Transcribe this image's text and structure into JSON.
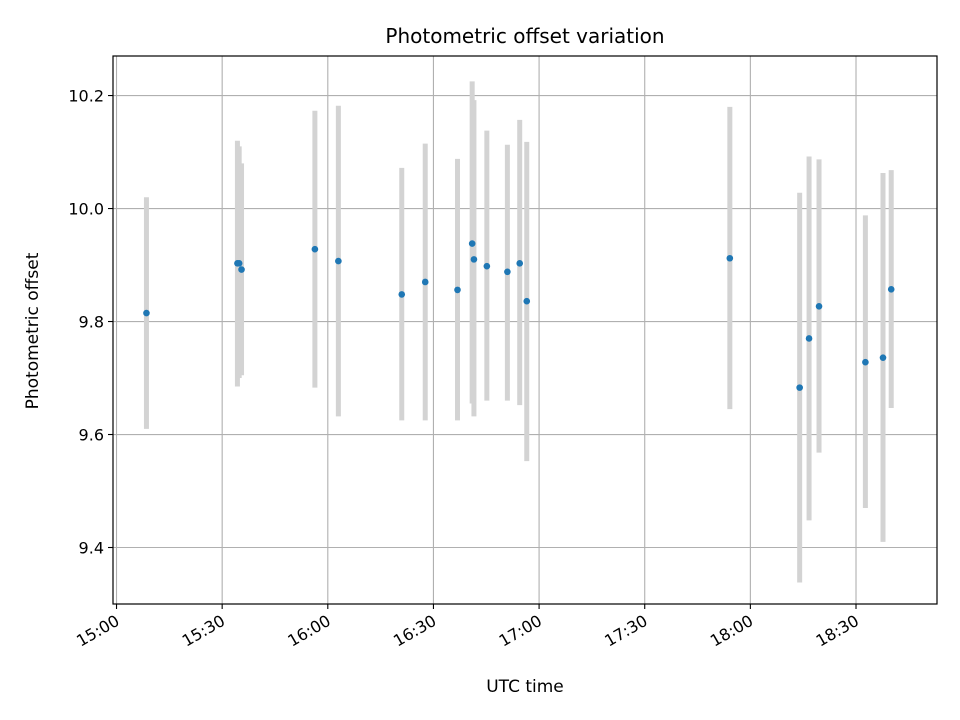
{
  "chart_data": {
    "type": "scatter",
    "title": "Photometric offset variation",
    "xlabel": "UTC time",
    "ylabel": "Photometric offset",
    "x_unit": "time of day (UTC)",
    "xlim": [
      "14:59",
      "18:53"
    ],
    "ylim": [
      9.3,
      10.27
    ],
    "grid": true,
    "legend": "none",
    "x_ticks": [
      "15:00",
      "15:30",
      "16:00",
      "16:30",
      "17:00",
      "17:30",
      "18:00",
      "18:30"
    ],
    "y_ticks": [
      9.4,
      9.6,
      9.8,
      10.0,
      10.2
    ],
    "y_tick_labels": [
      "9.4",
      "9.6",
      "9.8",
      "10.0",
      "10.2"
    ],
    "colors": {
      "point": "#1f77b4",
      "errorbar": "#d3d3d3",
      "grid": "#b0b0b0"
    },
    "series": [
      {
        "marker": "point",
        "errorbars": "vertical",
        "points": [
          {
            "x": "15:08:30",
            "y": 9.815,
            "ylow": 9.61,
            "yhigh": 10.02
          },
          {
            "x": "15:34:20",
            "y": 9.903,
            "ylow": 9.685,
            "yhigh": 10.12
          },
          {
            "x": "15:34:50",
            "y": 9.903,
            "ylow": 9.7,
            "yhigh": 10.11
          },
          {
            "x": "15:35:30",
            "y": 9.892,
            "ylow": 9.705,
            "yhigh": 10.08
          },
          {
            "x": "15:56:20",
            "y": 9.928,
            "ylow": 9.683,
            "yhigh": 10.173
          },
          {
            "x": "16:03:00",
            "y": 9.907,
            "ylow": 9.632,
            "yhigh": 10.182
          },
          {
            "x": "16:21:00",
            "y": 9.848,
            "ylow": 9.625,
            "yhigh": 10.072
          },
          {
            "x": "16:27:40",
            "y": 9.87,
            "ylow": 9.625,
            "yhigh": 10.115
          },
          {
            "x": "16:36:50",
            "y": 9.856,
            "ylow": 9.625,
            "yhigh": 10.088
          },
          {
            "x": "16:41:00",
            "y": 9.938,
            "ylow": 9.655,
            "yhigh": 10.225
          },
          {
            "x": "16:41:30",
            "y": 9.91,
            "ylow": 9.632,
            "yhigh": 10.192
          },
          {
            "x": "16:45:10",
            "y": 9.898,
            "ylow": 9.66,
            "yhigh": 10.138
          },
          {
            "x": "16:51:00",
            "y": 9.888,
            "ylow": 9.66,
            "yhigh": 10.113
          },
          {
            "x": "16:54:30",
            "y": 9.903,
            "ylow": 9.652,
            "yhigh": 10.157
          },
          {
            "x": "16:56:30",
            "y": 9.836,
            "ylow": 9.553,
            "yhigh": 10.118
          },
          {
            "x": "17:54:10",
            "y": 9.912,
            "ylow": 9.645,
            "yhigh": 10.18
          },
          {
            "x": "18:14:00",
            "y": 9.683,
            "ylow": 9.338,
            "yhigh": 10.028
          },
          {
            "x": "18:16:40",
            "y": 9.77,
            "ylow": 9.448,
            "yhigh": 10.092
          },
          {
            "x": "18:19:30",
            "y": 9.827,
            "ylow": 9.568,
            "yhigh": 10.087
          },
          {
            "x": "18:32:40",
            "y": 9.728,
            "ylow": 9.47,
            "yhigh": 9.988
          },
          {
            "x": "18:37:40",
            "y": 9.736,
            "ylow": 9.41,
            "yhigh": 10.063
          },
          {
            "x": "18:40:00",
            "y": 9.857,
            "ylow": 9.647,
            "yhigh": 10.068
          }
        ]
      }
    ]
  }
}
